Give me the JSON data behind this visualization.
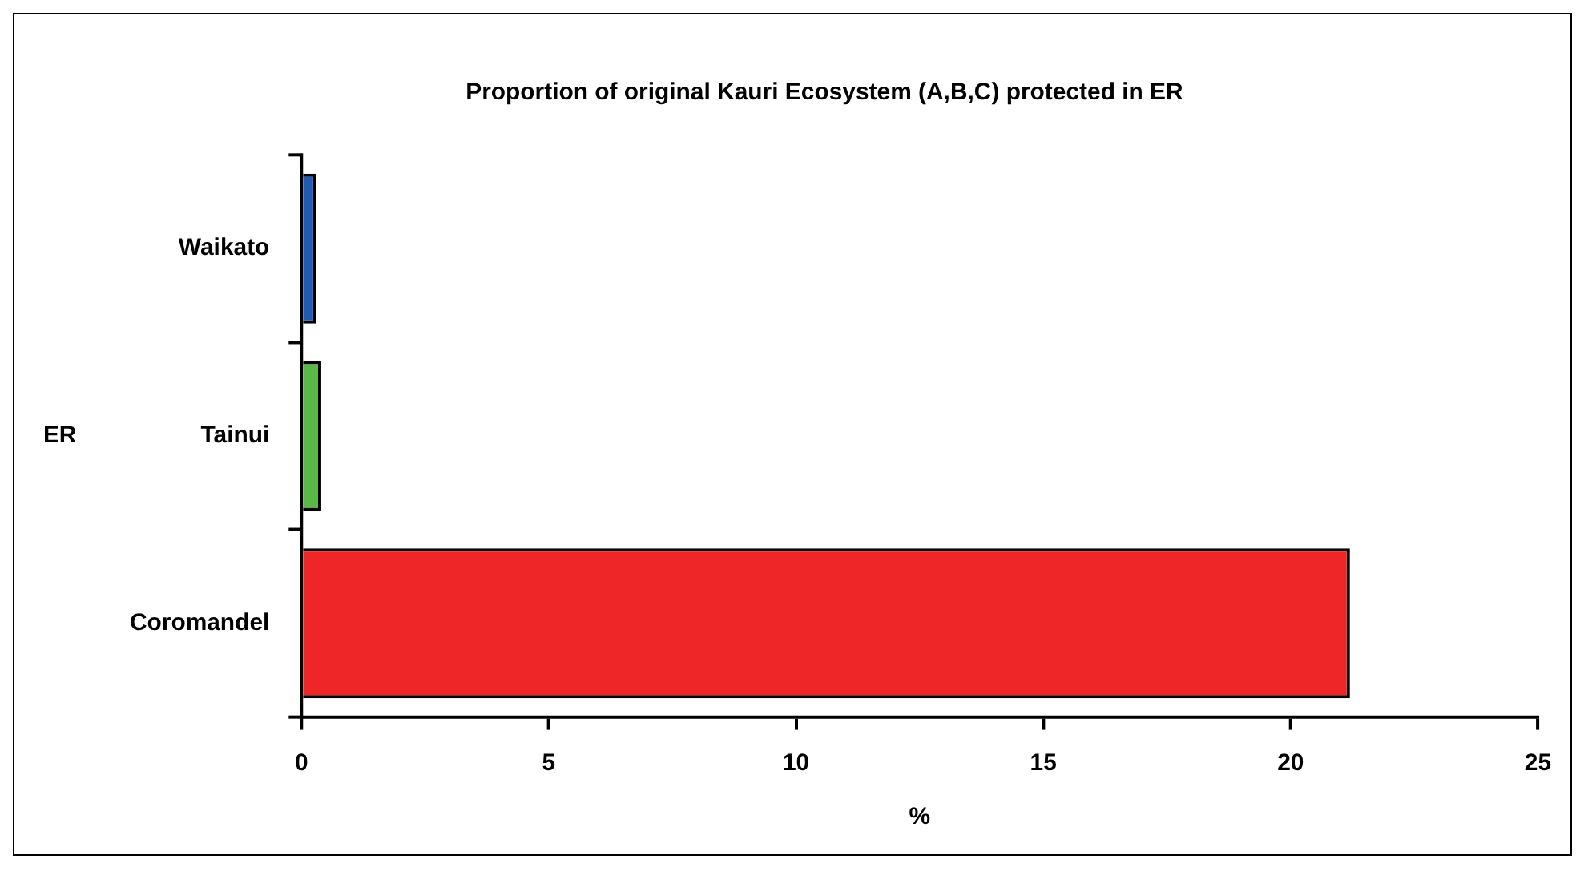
{
  "chart_data": {
    "type": "bar",
    "orientation": "horizontal",
    "title": "Proportion of original Kauri Ecosystem (A,B,C) protected in ER",
    "xlabel": "%",
    "ylabel": "ER",
    "categories": [
      "Waikato",
      "Tainui",
      "Coromandel"
    ],
    "values": [
      0.3,
      0.4,
      21.2
    ],
    "colors": [
      "#1f5ab4",
      "#5ab946",
      "#ee2628"
    ],
    "xlim": [
      0,
      25
    ],
    "xticks": [
      0,
      5,
      10,
      15,
      20,
      25
    ],
    "grid": false,
    "legend": false
  }
}
